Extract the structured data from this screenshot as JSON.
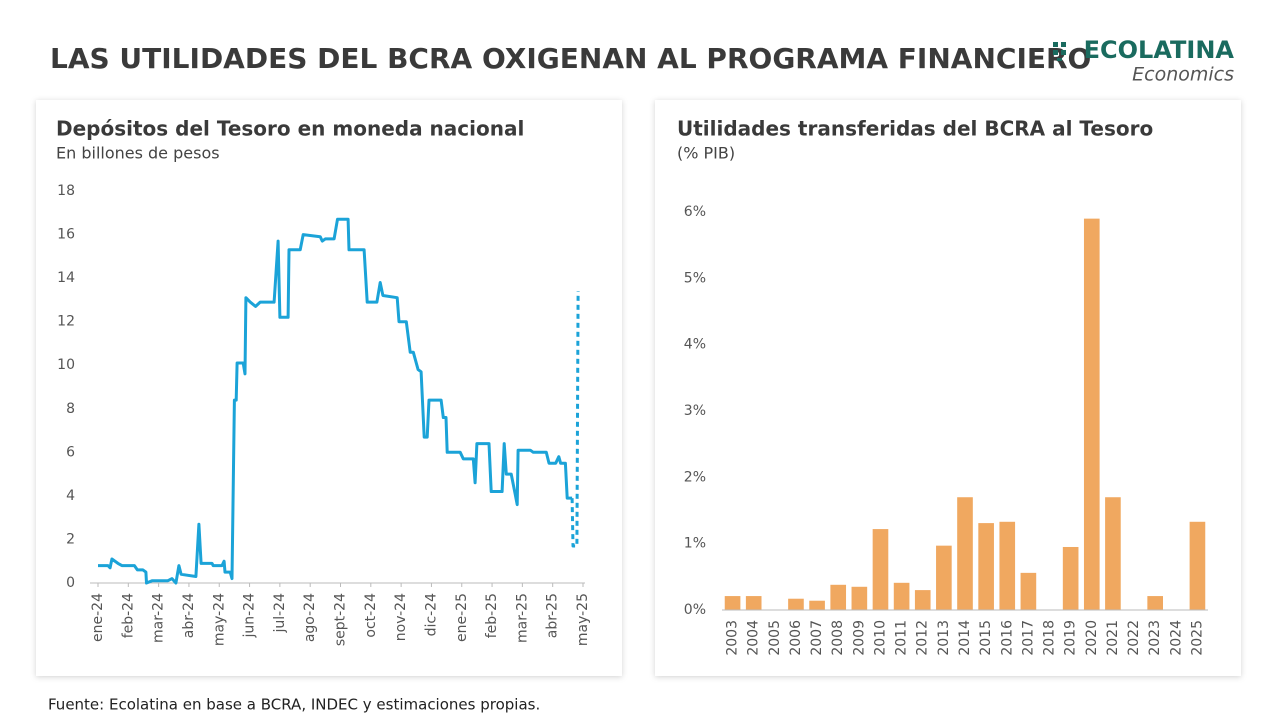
{
  "header": {
    "title": "LAS UTILIDADES DEL BCRA OXIGENAN AL PROGRAMA FINANCIERO",
    "logo": "ECOLATINA",
    "logo_sub": "Economics"
  },
  "chart_data": [
    {
      "type": "line",
      "title": "Depósitos del Tesoro en moneda nacional",
      "subtitle": "En billones de pesos",
      "xlim": [
        0,
        16
      ],
      "xticks": [
        {
          "value": 0,
          "label": "ene-24"
        },
        {
          "value": 1,
          "label": "feb-24"
        },
        {
          "value": 2,
          "label": "mar-24"
        },
        {
          "value": 3,
          "label": "abr-24"
        },
        {
          "value": 4,
          "label": "may-24"
        },
        {
          "value": 5,
          "label": "jun-24"
        },
        {
          "value": 6,
          "label": "jul-24"
        },
        {
          "value": 7,
          "label": "ago-24"
        },
        {
          "value": 8,
          "label": "sept-24"
        },
        {
          "value": 9,
          "label": "oct-24"
        },
        {
          "value": 10,
          "label": "nov-24"
        },
        {
          "value": 11,
          "label": "dic-24"
        },
        {
          "value": 12,
          "label": "ene-25"
        },
        {
          "value": 13,
          "label": "feb-25"
        },
        {
          "value": 14,
          "label": "mar-25"
        },
        {
          "value": 15,
          "label": "abr-25"
        },
        {
          "value": 16,
          "label": "may-25"
        }
      ],
      "ylim": [
        0,
        18
      ],
      "yticks": [
        0,
        2,
        4,
        6,
        8,
        10,
        12,
        14,
        16,
        18
      ],
      "series": [
        {
          "color": "#1ba3d8",
          "style": "solid",
          "x": [
            0,
            0.33,
            0.4,
            0.46,
            0.66,
            0.79,
            1.2,
            1.3,
            1.48,
            1.58,
            1.6,
            1.78,
            2.3,
            2.44,
            2.57,
            2.67,
            2.74,
            3.23,
            3.33,
            3.4,
            3.76,
            3.8,
            4.09,
            4.16,
            4.19,
            4.36,
            4.42,
            4.5,
            4.56,
            4.59,
            4.79,
            4.85,
            4.88,
            5.02,
            5.2,
            5.35,
            5.81,
            5.94,
            6.0,
            6.27,
            6.3,
            6.67,
            6.77,
            7.33,
            7.4,
            7.5,
            7.79,
            7.9,
            8.25,
            8.28,
            8.78,
            8.88,
            9.2,
            9.31,
            9.4,
            9.87,
            9.93,
            10.17,
            10.3,
            10.4,
            10.56,
            10.66,
            10.76,
            10.86,
            10.92,
            11.32,
            11.39,
            11.48,
            11.52,
            11.95,
            12.05,
            12.38,
            12.44,
            12.5,
            12.9,
            12.97,
            13.33,
            13.4,
            13.47,
            13.63,
            13.76,
            13.83,
            13.86,
            14.26,
            14.36,
            14.79,
            14.88,
            15.1,
            15.2,
            15.26,
            15.42,
            15.48,
            15.64
          ],
          "values": [
            0.8,
            0.8,
            0.7,
            1.1,
            0.9,
            0.8,
            0.8,
            0.6,
            0.6,
            0.5,
            0,
            0.1,
            0.1,
            0.2,
            0,
            0.8,
            0.4,
            0.3,
            2.7,
            0.9,
            0.9,
            0.8,
            0.8,
            1.0,
            0.5,
            0.5,
            0.2,
            8.4,
            8.4,
            10.1,
            10.1,
            9.6,
            13.1,
            12.9,
            12.7,
            12.9,
            12.9,
            15.7,
            12.2,
            12.2,
            15.3,
            15.3,
            16.0,
            15.9,
            15.7,
            15.8,
            15.8,
            16.7,
            16.7,
            15.3,
            15.3,
            12.9,
            12.9,
            13.8,
            13.2,
            13.1,
            12.0,
            12.0,
            10.6,
            10.6,
            9.8,
            9.7,
            6.7,
            6.7,
            8.4,
            8.4,
            7.6,
            7.6,
            6.0,
            6.0,
            5.7,
            5.7,
            4.6,
            6.4,
            6.4,
            4.2,
            4.2,
            6.4,
            5.0,
            5.0,
            4.1,
            3.6,
            6.1,
            6.1,
            6.0,
            6.0,
            5.5,
            5.5,
            5.8,
            5.5,
            5.5,
            3.9,
            3.9
          ]
        },
        {
          "color": "#1ba3d8",
          "style": "dashed",
          "x": [
            15.64,
            15.67,
            15.8,
            15.84
          ],
          "values": [
            3.9,
            1.7,
            1.7,
            13.4
          ]
        }
      ]
    },
    {
      "type": "bar",
      "title": "Utilidades transferidas del BCRA al Tesoro",
      "subtitle": "(% PIB)",
      "categories": [
        "2003",
        "2004",
        "2005",
        "2006",
        "2007",
        "2008",
        "2009",
        "2010",
        "2011",
        "2012",
        "2013",
        "2014",
        "2015",
        "2016",
        "2017",
        "2018",
        "2019",
        "2020",
        "2021",
        "2022",
        "2023",
        "2024",
        "2025"
      ],
      "values": [
        0.21,
        0.21,
        0,
        0.17,
        0.14,
        0.38,
        0.35,
        1.22,
        0.41,
        0.3,
        0.97,
        1.7,
        1.31,
        1.33,
        0.56,
        0,
        0.95,
        5.9,
        1.7,
        0,
        0.21,
        0,
        1.33
      ],
      "color": "#f0a860",
      "ylim": [
        0,
        6
      ],
      "yticks": [
        {
          "value": 0,
          "label": "0%"
        },
        {
          "value": 1,
          "label": "1%"
        },
        {
          "value": 2,
          "label": "2%"
        },
        {
          "value": 3,
          "label": "3%"
        },
        {
          "value": 4,
          "label": "4%"
        },
        {
          "value": 5,
          "label": "5%"
        },
        {
          "value": 6,
          "label": "6%"
        }
      ]
    }
  ],
  "footer": "Fuente: Ecolatina en base a BCRA, INDEC y estimaciones propias."
}
